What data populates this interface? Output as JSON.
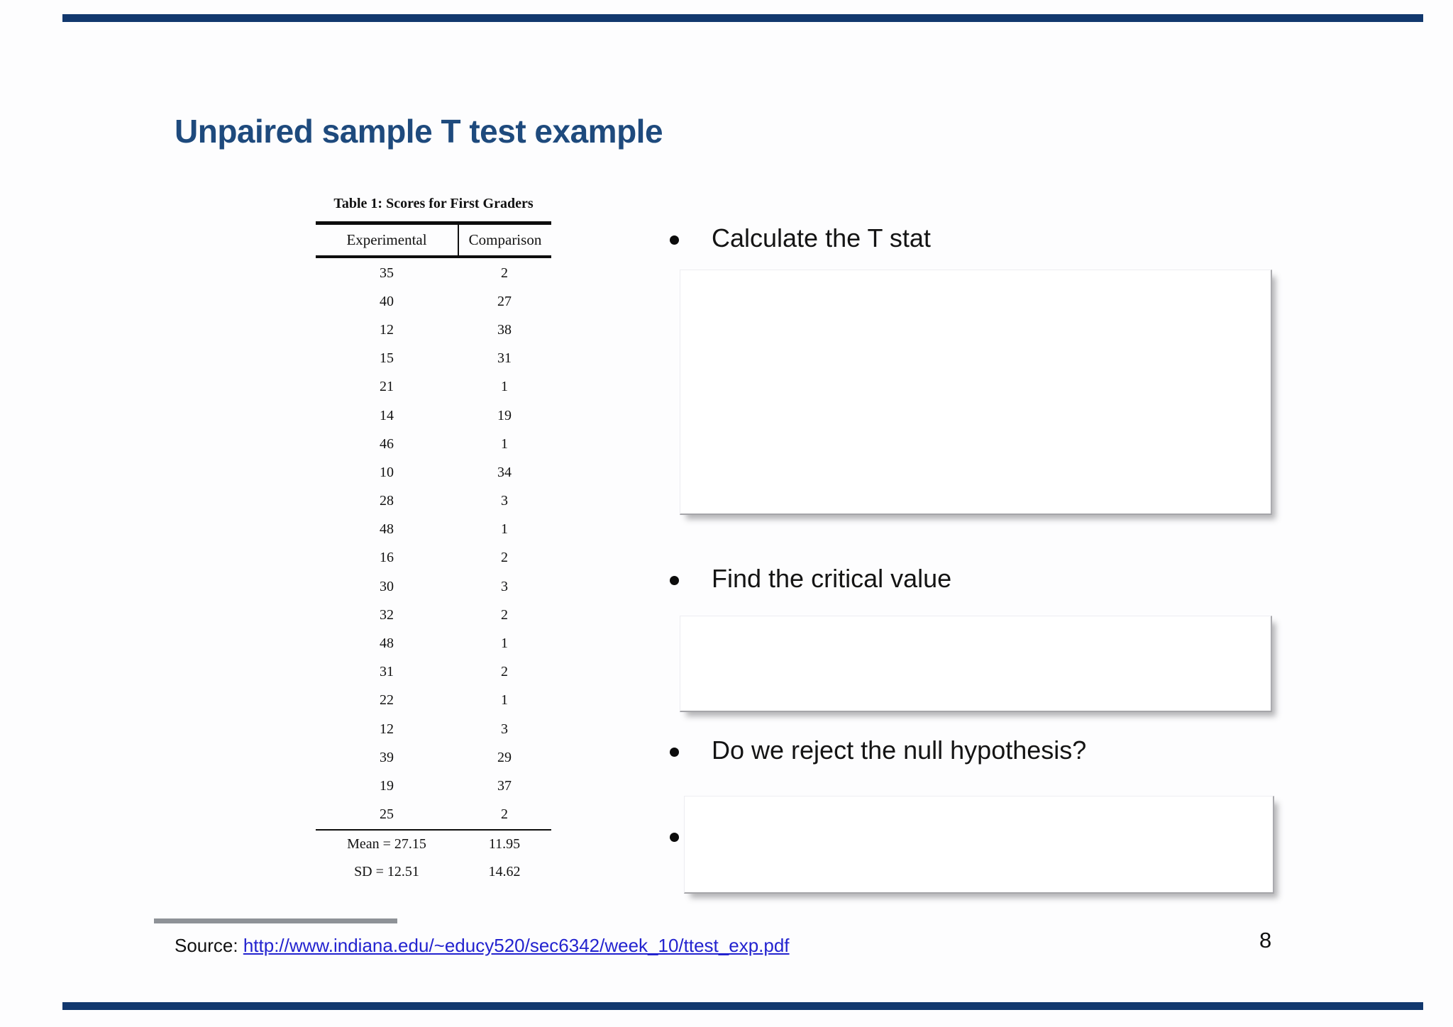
{
  "slide": {
    "title": "Unpaired sample T test example",
    "page_number": "8",
    "accent_color": "#1e4a7d",
    "bar_color": "#12386e",
    "link_color": "#2323cf"
  },
  "table": {
    "caption": "Table 1: Scores for First Graders",
    "columns": [
      "Experimental",
      "Comparison"
    ],
    "rows": [
      [
        "35",
        "2"
      ],
      [
        "40",
        "27"
      ],
      [
        "12",
        "38"
      ],
      [
        "15",
        "31"
      ],
      [
        "21",
        "1"
      ],
      [
        "14",
        "19"
      ],
      [
        "46",
        "1"
      ],
      [
        "10",
        "34"
      ],
      [
        "28",
        "3"
      ],
      [
        "48",
        "1"
      ],
      [
        "16",
        "2"
      ],
      [
        "30",
        "3"
      ],
      [
        "32",
        "2"
      ],
      [
        "48",
        "1"
      ],
      [
        "31",
        "2"
      ],
      [
        "22",
        "1"
      ],
      [
        "12",
        "3"
      ],
      [
        "39",
        "29"
      ],
      [
        "19",
        "37"
      ],
      [
        "25",
        "2"
      ]
    ],
    "summary": [
      {
        "experimental": "Mean = 27.15",
        "comparison": "11.95"
      },
      {
        "experimental": "SD = 12.51",
        "comparison": "14.62"
      }
    ]
  },
  "bullets": [
    {
      "label": "Calculate the T stat"
    },
    {
      "label": "Find the critical value"
    },
    {
      "label": "Do we reject the null hypothesis?"
    },
    {
      "label": ""
    }
  ],
  "source": {
    "prefix": "Source: ",
    "link": "http://www.indiana.edu/~educy520/sec6342/week_10/ttest_exp.pdf"
  }
}
